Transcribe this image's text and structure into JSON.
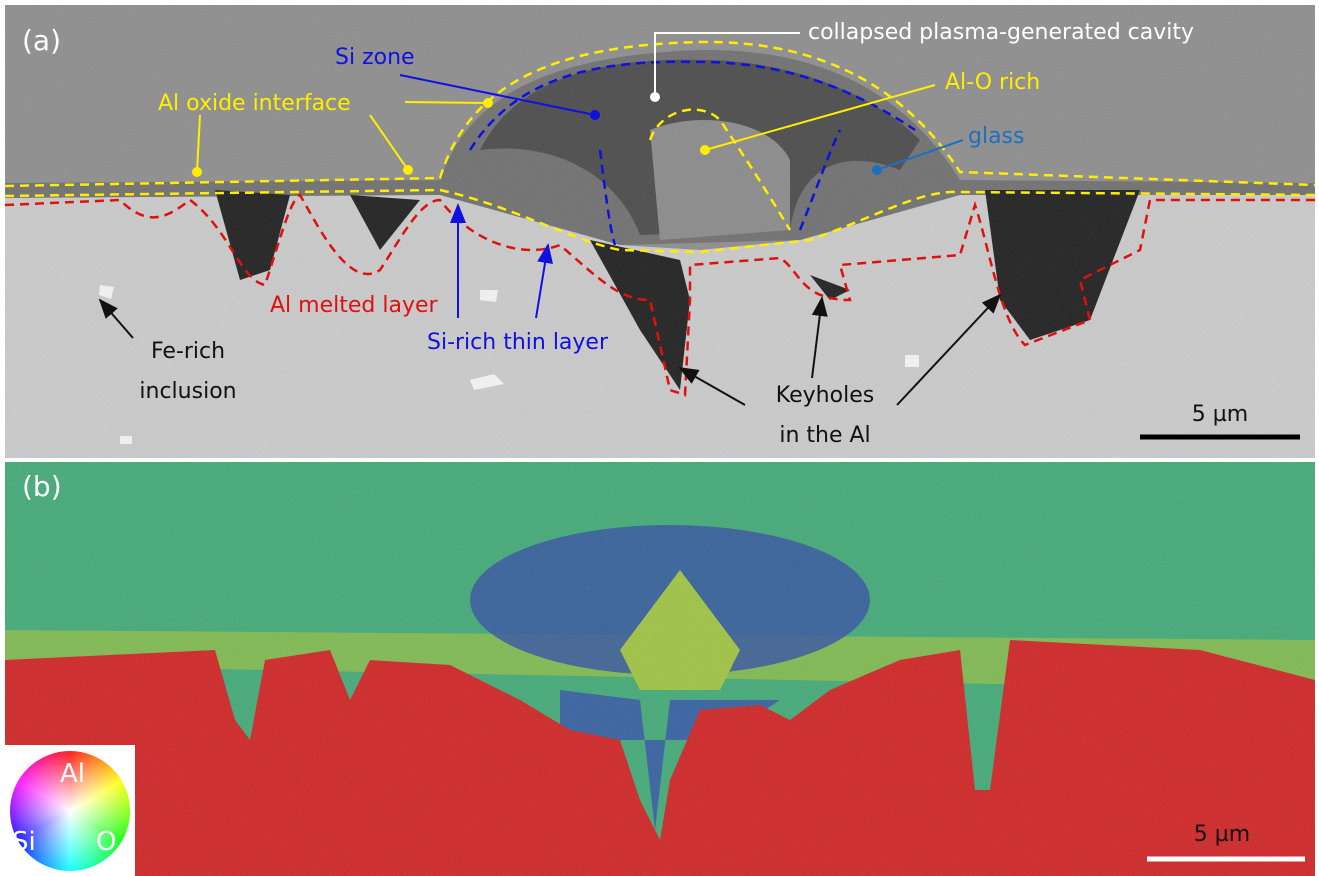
{
  "panels": {
    "a": {
      "label": "(a)",
      "scale_bar": "5 µm",
      "annotations": {
        "cavity": "collapsed plasma-generated cavity",
        "si_zone": "Si zone",
        "al_o_rich": "Al-O rich",
        "al_oxide_interface": "Al oxide interface",
        "glass": "glass",
        "al_melted_layer": "Al melted layer",
        "si_rich_thin_layer": "Si-rich thin layer",
        "fe_rich_inclusion": [
          "Fe-rich",
          "inclusion"
        ],
        "keyholes": [
          "Keyholes",
          "in the Al"
        ]
      }
    },
    "b": {
      "label": "(b)",
      "scale_bar": "5 µm",
      "color_key": {
        "top": "Al",
        "left": "Si",
        "right": "O"
      }
    }
  }
}
